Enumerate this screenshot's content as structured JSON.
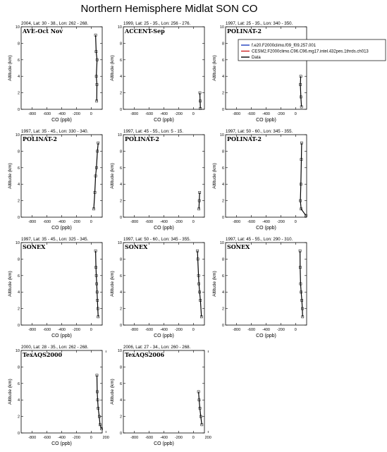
{
  "figure": {
    "title": "Northern Hemisphere Midlat SON CO",
    "xlabel": "CO (ppb)",
    "ylabel": "Altitude (km)",
    "xlim": [
      -950,
      150
    ],
    "ylim": [
      0,
      10
    ],
    "xticks": [
      -800,
      -600,
      -400,
      -200,
      0
    ],
    "xticks_last_row": [
      -800,
      -600,
      -400,
      -200,
      0,
      200
    ],
    "yticks": [
      0,
      2,
      4,
      6,
      8,
      10
    ]
  },
  "legend": {
    "entries": [
      {
        "label": "f.e20.F2000climo.f09_f09.257.001",
        "color": "#1f3fbf"
      },
      {
        "label": "CESM2.F2000climo.C96.C96.mg17.intel.432pes.1thrds.ch013",
        "color": "#cc2222"
      },
      {
        "label": "Data",
        "color": "#000000"
      }
    ]
  },
  "chart_data": [
    {
      "type": "line",
      "subtitle": "2004, Lat: 30 - 38., Lon: 262 - 268.",
      "campaign": "AVE-Oct Nov",
      "series": [
        {
          "name": "Data",
          "x": [
            75,
            78,
            70,
            80,
            68,
            60
          ],
          "y": [
            1,
            3,
            4,
            6,
            7,
            9
          ]
        }
      ]
    },
    {
      "type": "line",
      "subtitle": "1999, Lat: 25 - 35., Lon: 256 - 276.",
      "campaign": "ACCENT-Sep",
      "series": [
        {
          "name": "Data",
          "x": [
            95,
            92,
            88
          ],
          "y": [
            0.1,
            1,
            2
          ]
        }
      ]
    },
    {
      "type": "line",
      "subtitle": "1997, Lat: 25 - 35., Lon: 340 - 350.",
      "campaign": "POLINAT-2",
      "series": [
        {
          "name": "Data",
          "x": [
            80,
            72,
            65,
            70
          ],
          "y": [
            0.3,
            1.5,
            3,
            4
          ]
        }
      ]
    },
    {
      "type": "line",
      "subtitle": "1997, Lat: 35 - 45., Lon: 330 - 340.",
      "campaign": "POLINAT-2",
      "series": [
        {
          "name": "Data",
          "x": [
            35,
            50,
            60,
            72,
            85,
            95
          ],
          "y": [
            1,
            3,
            5,
            6,
            8,
            9
          ]
        }
      ]
    },
    {
      "type": "line",
      "subtitle": "1997, Lat: 45 - 55., Lon: 5 - 15.",
      "campaign": "POLINAT-2",
      "series": [
        {
          "name": "Data",
          "x": [
            75,
            80,
            85
          ],
          "y": [
            1,
            2,
            3
          ]
        }
      ]
    },
    {
      "type": "line",
      "subtitle": "1997, Lat: 50 - 60., Lon: 345 - 355.",
      "campaign": "POLINAT-2",
      "series": [
        {
          "name": "Data",
          "x": [
            140,
            75,
            65,
            72,
            78,
            82
          ],
          "y": [
            0.2,
            1,
            2,
            4,
            7,
            9
          ]
        }
      ]
    },
    {
      "type": "line",
      "subtitle": "1997, Lat: 35 - 45., Lon: 325 - 345.",
      "campaign": "SONEX",
      "series": [
        {
          "name": "Data",
          "x": [
            95,
            90,
            85,
            80,
            75,
            70,
            65,
            60
          ],
          "y": [
            1,
            2,
            3,
            4,
            5,
            6,
            7,
            9
          ]
        }
      ]
    },
    {
      "type": "line",
      "subtitle": "1997, Lat: 50 - 60., Lon: 345 - 355.",
      "campaign": "SONEX",
      "series": [
        {
          "name": "Data",
          "x": [
            110,
            95,
            85,
            75,
            70,
            60,
            55
          ],
          "y": [
            1,
            3,
            4,
            5,
            6,
            8,
            9
          ]
        }
      ]
    },
    {
      "type": "line",
      "subtitle": "1997, Lat: 45 - 55., Lon: 290 - 310.",
      "campaign": "SONEX",
      "series": [
        {
          "name": "Data",
          "x": [
            95,
            92,
            85,
            75,
            68,
            62,
            60
          ],
          "y": [
            1,
            2,
            3,
            4,
            5,
            7,
            9
          ]
        }
      ]
    },
    {
      "type": "line",
      "subtitle": "2000, Lat: 28 - 35., Lon: 262 - 268.",
      "campaign": "TexAQS2000",
      "series": [
        {
          "name": "Data",
          "x": [
            140,
            120,
            110,
            95,
            88,
            82,
            78
          ],
          "y": [
            0.5,
            1,
            2,
            3,
            4,
            5,
            7
          ]
        }
      ]
    },
    {
      "type": "line",
      "subtitle": "2006, Lat: 27 - 34., Lon: 260 - 268.",
      "campaign": "TexAQS2006",
      "series": [
        {
          "name": "Data",
          "x": [
            115,
            100,
            88,
            78,
            70
          ],
          "y": [
            1,
            2,
            3,
            4,
            5
          ]
        }
      ]
    }
  ]
}
